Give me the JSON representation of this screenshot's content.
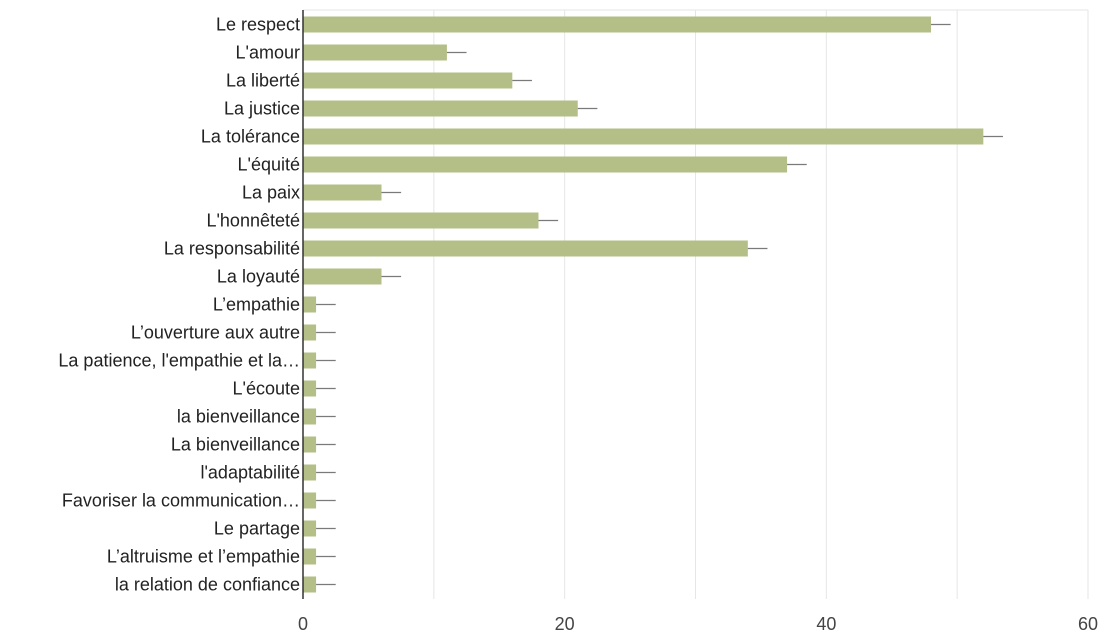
{
  "chart_data": {
    "type": "bar",
    "orientation": "horizontal",
    "categories": [
      "Le respect",
      "L'amour",
      "La liberté",
      "La justice",
      "La tolérance",
      "L'équité",
      "La paix",
      "L'honnêteté",
      "La responsabilité",
      "La loyauté",
      "L’empathie",
      "L’ouverture aux autre",
      "La patience, l'empathie et la…",
      "L'écoute",
      "la bienveillance",
      "La bienveillance",
      "l'adaptabilité",
      "Favoriser la communication…",
      "Le partage",
      "L’altruisme et l’empathie",
      "la relation de confiance"
    ],
    "values": [
      48,
      11,
      16,
      21,
      52,
      37,
      6,
      18,
      34,
      6,
      1,
      1,
      1,
      1,
      1,
      1,
      1,
      1,
      1,
      1,
      1
    ],
    "error_bars": true,
    "xlim": [
      0,
      60
    ],
    "xticks": [
      "0",
      "20",
      "40",
      "60"
    ],
    "grid": "vertical",
    "bar_color": "#b3bf87",
    "title": "",
    "xlabel": "",
    "ylabel": ""
  }
}
